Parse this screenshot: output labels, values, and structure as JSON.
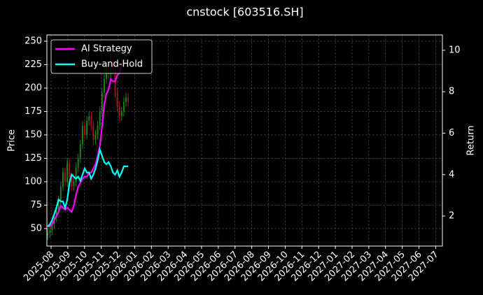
{
  "chart_data": {
    "type": "candlestick",
    "title": "cnstock [603516.SH]",
    "ylabel": "Price",
    "y2label": "Return",
    "x": [
      -0.2,
      -0.07,
      0.06,
      0.19,
      0.32,
      0.45,
      0.58,
      0.71,
      0.84,
      0.97,
      1.1,
      1.23,
      1.36,
      1.49,
      1.62,
      1.75,
      1.88,
      2.01,
      2.14,
      2.27,
      2.4,
      2.53,
      2.66,
      2.79,
      2.92,
      3.05,
      3.18,
      3.31,
      3.44,
      3.57,
      3.7,
      3.83,
      3.96,
      4.09,
      4.22,
      4.35,
      4.48,
      4.61
    ],
    "open": [
      43,
      45,
      48,
      55,
      62,
      70,
      80,
      95,
      110,
      100,
      120,
      105,
      95,
      100,
      115,
      125,
      140,
      160,
      150,
      165,
      170,
      160,
      145,
      150,
      160,
      175,
      195,
      210,
      225,
      215,
      230,
      220,
      195,
      180,
      170,
      175,
      185,
      190
    ],
    "close": [
      45,
      48,
      55,
      62,
      70,
      80,
      95,
      110,
      100,
      120,
      105,
      95,
      100,
      115,
      125,
      140,
      160,
      150,
      165,
      170,
      160,
      145,
      150,
      160,
      175,
      195,
      210,
      225,
      215,
      230,
      220,
      195,
      180,
      170,
      175,
      185,
      190,
      185
    ],
    "high": [
      50,
      53,
      60,
      67,
      75,
      85,
      100,
      115,
      115,
      125,
      125,
      110,
      105,
      120,
      130,
      145,
      165,
      165,
      170,
      175,
      175,
      165,
      155,
      165,
      180,
      200,
      215,
      230,
      230,
      235,
      235,
      225,
      200,
      185,
      180,
      190,
      195,
      195
    ],
    "low": [
      38,
      40,
      43,
      50,
      57,
      65,
      75,
      90,
      95,
      95,
      100,
      90,
      90,
      95,
      110,
      120,
      135,
      145,
      145,
      160,
      155,
      140,
      140,
      145,
      155,
      170,
      190,
      205,
      210,
      210,
      215,
      190,
      175,
      165,
      165,
      170,
      180,
      180
    ],
    "up_color": "#1a8a1a",
    "down_color": "#b01010",
    "series": [
      {
        "name": "AI Strategy",
        "color": "#ff00ff",
        "axis": "y2",
        "values": [
          1.5,
          1.5,
          1.6,
          1.8,
          2.0,
          2.2,
          2.5,
          2.4,
          2.3,
          2.4,
          2.3,
          2.2,
          2.5,
          3.0,
          3.4,
          3.6,
          3.8,
          3.9,
          3.9,
          4.1,
          4.1,
          4.3,
          4.5,
          4.9,
          5.4,
          6.3,
          7.4,
          7.9,
          8.1,
          8.6,
          8.5,
          8.5,
          8.8,
          8.9,
          9.3,
          9.3,
          9.5,
          9.5
        ]
      },
      {
        "name": "Buy-and-Hold",
        "color": "#00ffff",
        "axis": "y2",
        "values": [
          1.5,
          1.6,
          1.8,
          2.1,
          2.4,
          2.8,
          2.7,
          2.7,
          2.4,
          2.8,
          3.6,
          4.0,
          3.9,
          3.8,
          3.9,
          3.7,
          4.0,
          4.3,
          4.1,
          4.1,
          3.8,
          4.0,
          4.3,
          4.7,
          5.2,
          4.9,
          4.6,
          4.5,
          4.6,
          4.4,
          4.1,
          4.0,
          4.2,
          3.9,
          4.1,
          4.4,
          4.4,
          4.4
        ]
      }
    ],
    "xlim": [
      -0.25,
      23.4
    ],
    "xticks": [
      {
        "value": 0,
        "label": "2025-08"
      },
      {
        "value": 1,
        "label": "2025-09"
      },
      {
        "value": 2,
        "label": "2025-10"
      },
      {
        "value": 3,
        "label": "2025-11"
      },
      {
        "value": 4,
        "label": "2025-12"
      },
      {
        "value": 5,
        "label": "2026-01"
      },
      {
        "value": 6,
        "label": "2026-02"
      },
      {
        "value": 7,
        "label": "2026-03"
      },
      {
        "value": 8,
        "label": "2026-04"
      },
      {
        "value": 9,
        "label": "2026-05"
      },
      {
        "value": 10,
        "label": "2026-06"
      },
      {
        "value": 11,
        "label": "2026-07"
      },
      {
        "value": 12,
        "label": "2026-08"
      },
      {
        "value": 13,
        "label": "2026-09"
      },
      {
        "value": 14,
        "label": "2026-10"
      },
      {
        "value": 15,
        "label": "2026-11"
      },
      {
        "value": 16,
        "label": "2026-12"
      },
      {
        "value": 17,
        "label": "2027-01"
      },
      {
        "value": 18,
        "label": "2027-02"
      },
      {
        "value": 19,
        "label": "2027-03"
      },
      {
        "value": 20,
        "label": "2027-04"
      },
      {
        "value": 21,
        "label": "2027-05"
      },
      {
        "value": 22,
        "label": "2027-06"
      },
      {
        "value": 23,
        "label": "2027-07"
      }
    ],
    "ylim": [
      31.3,
      256.7
    ],
    "yticks": [
      50,
      75,
      100,
      125,
      150,
      175,
      200,
      225,
      250
    ],
    "y2lim": [
      0.55,
      10.74
    ],
    "y2ticks": [
      2,
      4,
      6,
      8,
      10
    ],
    "grid": true,
    "legend": "upper left"
  }
}
